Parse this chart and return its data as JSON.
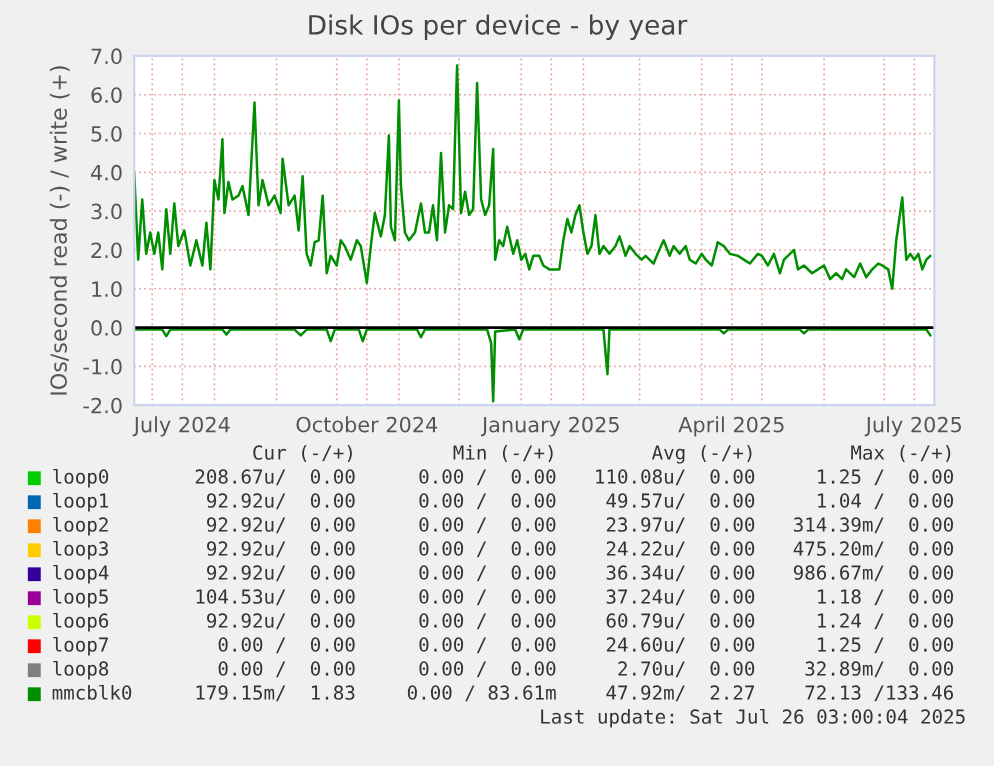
{
  "chart_data": {
    "type": "line",
    "title": "Disk IOs per device - by year",
    "ylabel": "IOs/second read (-) / write (+)",
    "xlim": [
      "2024-06-22",
      "2025-07-26"
    ],
    "xticks": [
      {
        "value": "2024-07-01",
        "label": null
      },
      {
        "value": "2024-07-16",
        "label": "July 2024"
      },
      {
        "value": "2024-08-01",
        "label": null
      },
      {
        "value": "2024-09-01",
        "label": null
      },
      {
        "value": "2024-10-01",
        "label": null
      },
      {
        "value": "2024-10-16",
        "label": "October 2024"
      },
      {
        "value": "2024-11-01",
        "label": null
      },
      {
        "value": "2024-12-01",
        "label": null
      },
      {
        "value": "2025-01-01",
        "label": null
      },
      {
        "value": "2025-01-16",
        "label": "January 2025"
      },
      {
        "value": "2025-02-01",
        "label": null
      },
      {
        "value": "2025-03-01",
        "label": null
      },
      {
        "value": "2025-04-01",
        "label": null
      },
      {
        "value": "2025-04-16",
        "label": "April 2025"
      },
      {
        "value": "2025-05-01",
        "label": null
      },
      {
        "value": "2025-06-01",
        "label": null
      },
      {
        "value": "2025-07-01",
        "label": null
      },
      {
        "value": "2025-07-16",
        "label": "July 2025"
      }
    ],
    "ylim": [
      -2,
      7
    ],
    "yticks": [
      {
        "value": -2,
        "label": "-2.0"
      },
      {
        "value": -1,
        "label": "-1.0"
      },
      {
        "value": 0,
        "label": "0.0"
      },
      {
        "value": 1,
        "label": "1.0"
      },
      {
        "value": 2,
        "label": "2.0"
      },
      {
        "value": 3,
        "label": "3.0"
      },
      {
        "value": 4,
        "label": "4.0"
      },
      {
        "value": 5,
        "label": "5.0"
      },
      {
        "value": 6,
        "label": "6.0"
      },
      {
        "value": 7,
        "label": "7.0"
      }
    ],
    "grid": true,
    "legend": "bottom",
    "marker": "none",
    "line_style": "solid",
    "ref_lines": [
      {
        "axis": "y",
        "value": 0,
        "label": null,
        "color": "#000000"
      }
    ],
    "series": [
      {
        "name": "loop0",
        "color": "#00cc00"
      },
      {
        "name": "loop1",
        "color": "#0066b3"
      },
      {
        "name": "loop2",
        "color": "#ff8000"
      },
      {
        "name": "loop3",
        "color": "#ffcc00"
      },
      {
        "name": "loop4",
        "color": "#330099"
      },
      {
        "name": "loop5",
        "color": "#990099"
      },
      {
        "name": "loop6",
        "color": "#ccff00"
      },
      {
        "name": "loop7",
        "color": "#ff0000"
      },
      {
        "name": "loop8",
        "color": "#808080"
      },
      {
        "name": "mmcblk0",
        "color": "#008f00",
        "x": [
          "2024-06-22",
          "2024-06-24",
          "2024-06-26",
          "2024-06-28",
          "2024-06-30",
          "2024-07-02",
          "2024-07-04",
          "2024-07-06",
          "2024-07-08",
          "2024-07-10",
          "2024-07-12",
          "2024-07-14",
          "2024-07-17",
          "2024-07-20",
          "2024-07-23",
          "2024-07-26",
          "2024-07-28",
          "2024-07-30",
          "2024-08-01",
          "2024-08-03",
          "2024-08-05",
          "2024-08-06",
          "2024-08-08",
          "2024-08-10",
          "2024-08-13",
          "2024-08-15",
          "2024-08-18",
          "2024-08-21",
          "2024-08-23",
          "2024-08-25",
          "2024-08-28",
          "2024-08-31",
          "2024-09-03",
          "2024-09-04",
          "2024-09-07",
          "2024-09-10",
          "2024-09-12",
          "2024-09-14",
          "2024-09-16",
          "2024-09-18",
          "2024-09-20",
          "2024-09-22",
          "2024-09-24",
          "2024-09-26",
          "2024-09-28",
          "2024-10-01",
          "2024-10-03",
          "2024-10-05",
          "2024-10-08",
          "2024-10-11",
          "2024-10-13",
          "2024-10-16",
          "2024-10-18",
          "2024-10-20",
          "2024-10-23",
          "2024-10-25",
          "2024-10-27",
          "2024-10-28",
          "2024-10-30",
          "2024-11-01",
          "2024-11-02",
          "2024-11-04",
          "2024-11-06",
          "2024-11-09",
          "2024-11-12",
          "2024-11-14",
          "2024-11-16",
          "2024-11-18",
          "2024-11-20",
          "2024-11-22",
          "2024-11-24",
          "2024-11-26",
          "2024-11-28",
          "2024-11-30",
          "2024-12-02",
          "2024-12-04",
          "2024-12-06",
          "2024-12-08",
          "2024-12-10",
          "2024-12-12",
          "2024-12-14",
          "2024-12-16",
          "2024-12-18",
          "2024-12-19",
          "2024-12-21",
          "2024-12-23",
          "2024-12-25",
          "2024-12-28",
          "2024-12-30",
          "2025-01-01",
          "2025-01-03",
          "2025-01-05",
          "2025-01-07",
          "2025-01-10",
          "2025-01-12",
          "2025-01-15",
          "2025-01-18",
          "2025-01-20",
          "2025-01-22",
          "2025-01-24",
          "2025-01-26",
          "2025-01-28",
          "2025-01-30",
          "2025-02-01",
          "2025-02-03",
          "2025-02-05",
          "2025-02-07",
          "2025-02-09",
          "2025-02-11",
          "2025-02-14",
          "2025-02-17",
          "2025-02-19",
          "2025-02-22",
          "2025-02-24",
          "2025-02-27",
          "2025-03-02",
          "2025-03-04",
          "2025-03-08",
          "2025-03-10",
          "2025-03-13",
          "2025-03-16",
          "2025-03-18",
          "2025-03-21",
          "2025-03-24",
          "2025-03-26",
          "2025-03-29",
          "2025-04-01",
          "2025-04-03",
          "2025-04-06",
          "2025-04-09",
          "2025-04-12",
          "2025-04-15",
          "2025-04-19",
          "2025-04-22",
          "2025-04-25",
          "2025-04-29",
          "2025-05-01",
          "2025-05-04",
          "2025-05-07",
          "2025-05-10",
          "2025-05-12",
          "2025-05-15",
          "2025-05-17",
          "2025-05-19",
          "2025-05-22",
          "2025-05-26",
          "2025-05-29",
          "2025-06-01",
          "2025-06-04",
          "2025-06-07",
          "2025-06-10",
          "2025-06-12",
          "2025-06-16",
          "2025-06-19",
          "2025-06-22",
          "2025-06-25",
          "2025-06-28",
          "2025-06-30",
          "2025-07-03",
          "2025-07-05",
          "2025-07-07",
          "2025-07-10",
          "2025-07-12",
          "2025-07-14",
          "2025-07-16",
          "2025-07-18",
          "2025-07-20",
          "2025-07-22",
          "2025-07-24"
        ],
        "values": [
          4.0,
          1.75,
          3.3,
          1.9,
          2.45,
          1.9,
          2.45,
          1.5,
          3.05,
          1.9,
          3.2,
          2.1,
          2.5,
          1.6,
          2.25,
          1.6,
          2.7,
          1.5,
          3.8,
          3.3,
          4.85,
          2.95,
          3.75,
          3.3,
          3.4,
          3.65,
          2.9,
          5.8,
          3.15,
          3.8,
          3.15,
          3.4,
          2.95,
          4.35,
          3.15,
          3.4,
          2.5,
          3.9,
          1.9,
          1.6,
          2.2,
          2.25,
          3.4,
          1.4,
          1.85,
          1.6,
          2.25,
          2.1,
          1.75,
          2.25,
          2.1,
          1.15,
          2.1,
          2.95,
          2.35,
          2.9,
          4.95,
          2.6,
          2.25,
          5.85,
          3.65,
          2.45,
          2.25,
          2.45,
          3.2,
          2.45,
          2.45,
          3.15,
          2.25,
          4.5,
          2.45,
          3.15,
          3.05,
          6.75,
          2.95,
          3.5,
          2.9,
          3.05,
          6.3,
          3.3,
          2.9,
          3.15,
          4.6,
          1.75,
          2.25,
          2.1,
          2.6,
          1.9,
          2.25,
          1.75,
          1.9,
          1.5,
          1.85,
          1.85,
          1.6,
          1.5,
          1.5,
          1.5,
          2.25,
          2.8,
          2.45,
          2.9,
          3.15,
          2.45,
          1.9,
          2.1,
          2.9,
          1.9,
          2.1,
          1.9,
          2.1,
          2.35,
          1.85,
          2.1,
          1.9,
          1.75,
          1.85,
          1.65,
          1.9,
          2.25,
          1.85,
          2.1,
          1.9,
          2.1,
          1.75,
          1.65,
          1.9,
          1.75,
          1.6,
          2.2,
          2.1,
          1.9,
          1.85,
          1.75,
          1.65,
          1.9,
          1.85,
          1.6,
          1.9,
          1.4,
          1.75,
          1.9,
          2.0,
          1.5,
          1.6,
          1.4,
          1.5,
          1.6,
          1.25,
          1.4,
          1.25,
          1.5,
          1.3,
          1.65,
          1.3,
          1.5,
          1.65,
          1.6,
          1.5,
          1.0,
          2.25,
          3.35,
          1.75,
          1.9,
          1.75,
          1.9,
          1.5,
          1.75,
          1.85
        ]
      },
      {
        "color": "#008f00",
        "x": [
          "2024-06-22",
          "2024-07-06",
          "2024-07-08",
          "2024-07-10",
          "2024-08-05",
          "2024-08-07",
          "2024-08-09",
          "2024-09-10",
          "2024-09-13",
          "2024-09-16",
          "2024-09-26",
          "2024-09-28",
          "2024-09-30",
          "2024-10-12",
          "2024-10-14",
          "2024-10-16",
          "2024-11-10",
          "2024-11-12",
          "2024-11-14",
          "2024-12-15",
          "2024-12-17",
          "2024-12-18",
          "2024-12-19",
          "2024-12-29",
          "2024-12-31",
          "2025-01-02",
          "2025-02-11",
          "2025-02-13",
          "2025-02-14",
          "2025-04-10",
          "2025-04-12",
          "2025-04-14",
          "2025-05-20",
          "2025-05-22",
          "2025-05-24",
          "2025-07-22",
          "2025-07-24"
        ],
        "values": [
          -0.05,
          -0.05,
          -0.22,
          -0.05,
          -0.05,
          -0.18,
          -0.05,
          -0.05,
          -0.2,
          -0.05,
          -0.05,
          -0.35,
          -0.05,
          -0.05,
          -0.35,
          -0.05,
          -0.05,
          -0.25,
          -0.05,
          -0.05,
          -0.4,
          -1.9,
          -0.1,
          -0.05,
          -0.3,
          -0.05,
          -0.05,
          -1.2,
          -0.05,
          -0.05,
          -0.15,
          -0.05,
          -0.05,
          -0.15,
          -0.05,
          -0.05,
          -0.2
        ]
      }
    ],
    "annotations": [
      "Cur (-/+)",
      "Min (-/+)",
      "Avg (-/+)",
      "Max (-/+)",
      "208.67u/  0.00",
      "0.00 /  0.00",
      "110.08u/  0.00",
      "1.25 /  0.00",
      "92.92u/  0.00",
      "0.00 /  0.00",
      "49.57u/  0.00",
      "1.04 /  0.00",
      "92.92u/  0.00",
      "0.00 /  0.00",
      "23.97u/  0.00",
      "314.39m/  0.00",
      "92.92u/  0.00",
      "0.00 /  0.00",
      "24.22u/  0.00",
      "475.20m/  0.00",
      "92.92u/  0.00",
      "0.00 /  0.00",
      "36.34u/  0.00",
      "986.67m/  0.00",
      "104.53u/  0.00",
      "0.00 /  0.00",
      "37.24u/  0.00",
      "1.18 /  0.00",
      "92.92u/  0.00",
      "0.00 /  0.00",
      "60.79u/  0.00",
      "1.24 /  0.00",
      "0.00 /  0.00",
      "0.00 /  0.00",
      "24.60u/  0.00",
      "1.25 /  0.00",
      "0.00 /  0.00",
      "0.00 /  0.00",
      "2.70u/  0.00",
      "32.89m/  0.00",
      "179.15m/  1.83",
      "0.00 / 83.61m",
      "47.92m/  2.27",
      "72.13 /133.46",
      "Last update: Sat Jul 26 03:00:04 2025"
    ]
  }
}
